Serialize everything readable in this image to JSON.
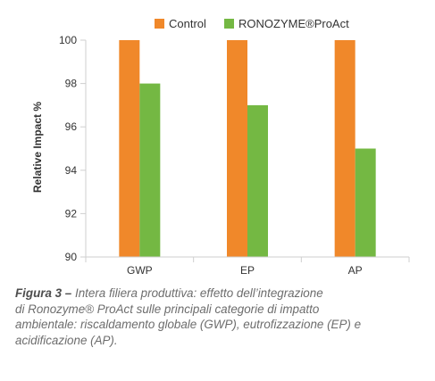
{
  "chart_data": {
    "type": "bar",
    "categories": [
      "GWP",
      "EP",
      "AP"
    ],
    "series": [
      {
        "name": "Control",
        "values": [
          100,
          100,
          100
        ]
      },
      {
        "name": "RONOZYME®ProAct",
        "values": [
          98,
          97,
          95
        ]
      }
    ],
    "title": "",
    "xlabel": "",
    "ylabel": "Relative Impact %",
    "ylim": [
      90,
      100
    ],
    "yticks": [
      90,
      92,
      94,
      96,
      98,
      100
    ],
    "grid": false,
    "legend_position": "top",
    "colors": {
      "Control": "#f0882a",
      "RONOZYME®ProAct": "#74b843",
      "axis": "#cfcfcf"
    }
  },
  "caption": {
    "label": "Figura 3 –",
    "lines": [
      "Intera filiera produttiva: effetto dell’integrazione",
      "di Ronozyme® ProAct sulle principali categorie di impatto",
      "ambientale: riscaldamento globale (GWP), eutrofizzazione (EP) e",
      "acidificazione (AP)."
    ]
  }
}
